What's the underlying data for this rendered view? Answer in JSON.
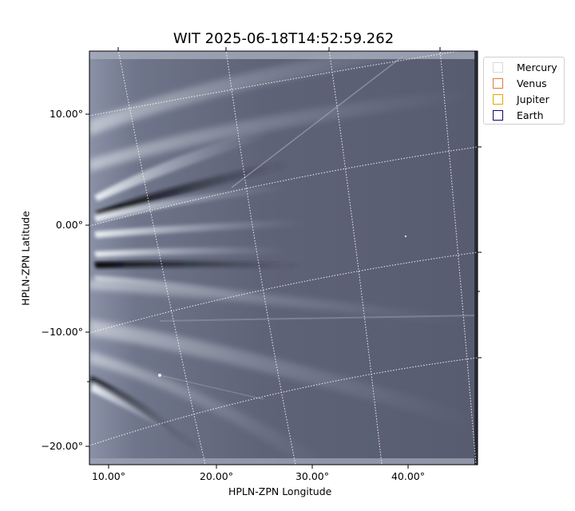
{
  "title": "WIT 2025-06-18T14:52:59.262",
  "axes": {
    "xlabel": "HPLN-ZPN Longitude",
    "ylabel": "HPLN-ZPN Latitude",
    "x_ticks": [
      "10.00°",
      "20.00°",
      "30.00°",
      "40.00°"
    ],
    "y_ticks": [
      "10.00°",
      "0.00°",
      "−10.00°",
      "−20.00°"
    ]
  },
  "legend": {
    "items": [
      {
        "label": "Mercury",
        "color": "#d9d9d9"
      },
      {
        "label": "Venus",
        "color": "#e07a3a"
      },
      {
        "label": "Jupiter",
        "color": "#e8a500"
      },
      {
        "label": "Earth",
        "color": "#0a0a6a"
      }
    ]
  },
  "image": {
    "colormap": "bone",
    "background": "#5a5f73",
    "grid_color": "#ffffff",
    "grid_style": "dotted"
  }
}
